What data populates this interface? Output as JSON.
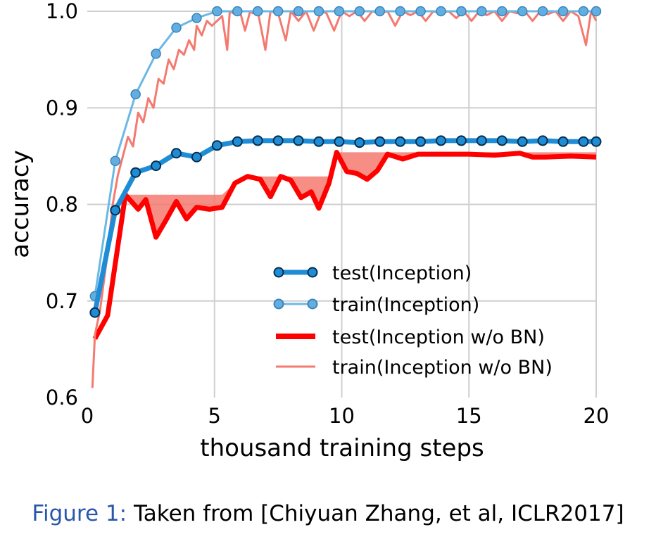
{
  "caption": {
    "label": "Figure 1:",
    "text": "Taken from [Chiyuan Zhang, et al, ICLR2017]"
  },
  "chart_data": {
    "type": "line",
    "title": "",
    "xlabel": "thousand training steps",
    "ylabel": "accuracy",
    "xlim": [
      0,
      20
    ],
    "ylim": [
      0.6,
      1.0
    ],
    "xticks": [
      "0",
      "5",
      "10",
      "15",
      "20"
    ],
    "xtick_values": [
      0,
      5,
      10,
      15,
      20
    ],
    "yticks": [
      "0.6",
      "0.7",
      "0.8",
      "0.9",
      "1.0"
    ],
    "ytick_values": [
      0.6,
      0.7,
      0.8,
      0.9,
      1.0
    ],
    "grid": true,
    "legend_position": "lower-right",
    "shaded_region": "area between test(Inception w/o BN) and its running maximum",
    "series": [
      {
        "name": "test(Inception)",
        "color": "#1f8dd6",
        "style": "thick line with circle markers",
        "x": [
          0.3,
          1.1,
          1.9,
          2.7,
          3.5,
          4.3,
          5.1,
          5.9,
          6.7,
          7.5,
          8.3,
          9.1,
          9.9,
          10.7,
          11.5,
          12.3,
          13.1,
          13.9,
          14.7,
          15.5,
          16.3,
          17.1,
          17.9,
          18.7,
          19.5,
          20.0
        ],
        "y": [
          0.688,
          0.794,
          0.833,
          0.84,
          0.853,
          0.849,
          0.861,
          0.865,
          0.866,
          0.866,
          0.866,
          0.865,
          0.865,
          0.864,
          0.865,
          0.865,
          0.865,
          0.866,
          0.866,
          0.866,
          0.866,
          0.865,
          0.866,
          0.865,
          0.865,
          0.865
        ]
      },
      {
        "name": "train(Inception)",
        "color": "#6bb8e4",
        "style": "thin line with circle markers",
        "x": [
          0.3,
          1.1,
          1.9,
          2.7,
          3.5,
          4.3,
          5.1,
          5.9,
          6.7,
          7.5,
          8.3,
          9.1,
          9.9,
          10.7,
          11.5,
          12.3,
          13.1,
          13.9,
          14.7,
          15.5,
          16.3,
          17.1,
          17.9,
          18.7,
          19.5,
          20.0
        ],
        "y": [
          0.705,
          0.845,
          0.914,
          0.956,
          0.983,
          0.993,
          1.0,
          1.0,
          1.0,
          1.0,
          1.0,
          1.0,
          1.0,
          1.0,
          1.0,
          1.0,
          1.0,
          1.0,
          1.0,
          1.0,
          1.0,
          1.0,
          1.0,
          1.0,
          1.0,
          1.0
        ]
      },
      {
        "name": "test(Inception w/o BN)",
        "color": "#ff0000",
        "style": "thick line",
        "x": [
          0.3,
          0.8,
          1.5,
          2.0,
          2.3,
          2.7,
          3.1,
          3.5,
          3.9,
          4.3,
          4.8,
          5.3,
          5.8,
          6.3,
          6.8,
          7.2,
          7.6,
          8.0,
          8.4,
          8.8,
          9.1,
          9.5,
          9.8,
          10.2,
          10.6,
          11.0,
          11.4,
          11.8,
          12.4,
          13.0,
          14.0,
          15.0,
          16.0,
          17.0,
          17.5,
          18.0,
          19.0,
          20.0
        ],
        "y": [
          0.661,
          0.685,
          0.81,
          0.795,
          0.805,
          0.766,
          0.784,
          0.803,
          0.785,
          0.797,
          0.795,
          0.797,
          0.822,
          0.829,
          0.826,
          0.808,
          0.829,
          0.825,
          0.807,
          0.813,
          0.796,
          0.822,
          0.854,
          0.834,
          0.832,
          0.826,
          0.835,
          0.852,
          0.847,
          0.852,
          0.852,
          0.852,
          0.851,
          0.853,
          0.849,
          0.849,
          0.85,
          0.849
        ]
      },
      {
        "name": "train(Inception w/o BN)",
        "color": "#f47a70",
        "style": "thin noisy line",
        "x": [
          0.2,
          0.3,
          0.5,
          0.8,
          1.0,
          1.2,
          1.4,
          1.6,
          1.8,
          2.0,
          2.2,
          2.4,
          2.6,
          2.8,
          3.0,
          3.2,
          3.4,
          3.6,
          3.8,
          4.0,
          4.2,
          4.3,
          4.5,
          4.7,
          4.9,
          5.1,
          5.3,
          5.5,
          5.6,
          5.8,
          6.0,
          6.2,
          6.4,
          6.5,
          6.7,
          7.0,
          7.2,
          7.5,
          7.8,
          8.0,
          8.3,
          8.6,
          8.9,
          9.2,
          9.4,
          9.7,
          10.0,
          10.3,
          10.6,
          10.9,
          11.2,
          11.5,
          11.8,
          12.1,
          12.4,
          12.7,
          13.0,
          13.3,
          13.6,
          13.9,
          14.2,
          14.5,
          14.8,
          15.1,
          15.4,
          15.7,
          16.0,
          16.3,
          16.6,
          16.9,
          17.2,
          17.5,
          17.8,
          18.1,
          18.4,
          18.7,
          19.0,
          19.3,
          19.6,
          19.8,
          20.0
        ],
        "y": [
          0.61,
          0.665,
          0.69,
          0.75,
          0.8,
          0.83,
          0.85,
          0.87,
          0.86,
          0.895,
          0.885,
          0.91,
          0.9,
          0.93,
          0.925,
          0.95,
          0.94,
          0.96,
          0.955,
          0.97,
          0.96,
          0.985,
          0.975,
          0.99,
          0.985,
          0.99,
          0.995,
          0.96,
          1.0,
          0.997,
          1.0,
          0.98,
          1.0,
          0.998,
          1.0,
          0.96,
          1.0,
          0.998,
          0.97,
          1.0,
          0.99,
          1.0,
          0.98,
          1.0,
          0.998,
          0.98,
          1.0,
          0.995,
          1.0,
          0.99,
          1.0,
          0.998,
          1.0,
          0.985,
          1.0,
          0.996,
          1.0,
          0.99,
          1.0,
          0.998,
          1.0,
          0.993,
          1.0,
          0.99,
          1.0,
          0.996,
          1.0,
          0.99,
          1.0,
          0.998,
          1.0,
          0.99,
          1.0,
          0.997,
          1.0,
          0.99,
          1.0,
          0.995,
          0.965,
          1.0,
          0.99
        ]
      }
    ]
  }
}
